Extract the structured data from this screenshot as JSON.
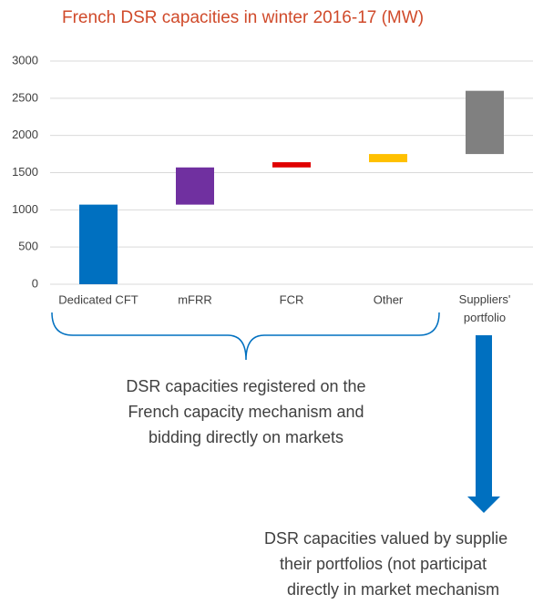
{
  "chart_data": {
    "type": "waterfall",
    "title": "French DSR capacities in winter 2016-17 (MW)",
    "categories": [
      "Dedicated CFT",
      "mFRR",
      "FCR",
      "Other",
      "Suppliers' portfolio"
    ],
    "values": [
      1070,
      500,
      70,
      110,
      850
    ],
    "colors": [
      "#0070c0",
      "#7030a0",
      "#e00000",
      "#ffc000",
      "#808080"
    ],
    "ylim": [
      0,
      3000
    ],
    "yticks": [
      0,
      500,
      1000,
      1500,
      2000,
      2500,
      3000
    ],
    "grid": true,
    "annotations": [
      {
        "lines": [
          "DSR capacities registered on the",
          "French capacity mechanism and",
          "bidding directly on markets"
        ]
      },
      {
        "lines": [
          "DSR capacities valued by supplie",
          "their portfolios (not participat",
          "directly in market mechanism"
        ]
      }
    ]
  }
}
